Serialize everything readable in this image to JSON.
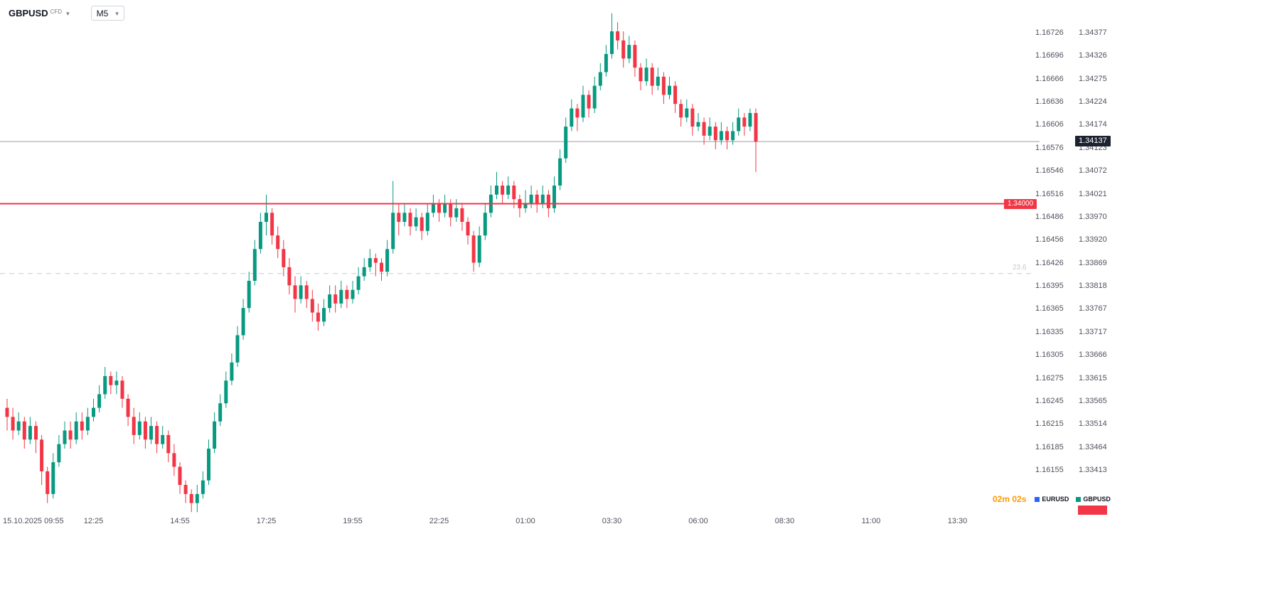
{
  "header": {
    "symbol": "GBPUSD",
    "market_type": "CFD",
    "interval": "M5"
  },
  "footer": {
    "countdown": "02m 02s",
    "legend": [
      {
        "label": "EURUSD",
        "color": "#2962ff"
      },
      {
        "label": "GBPUSD",
        "color": "#089981"
      }
    ]
  },
  "chart_data": {
    "type": "candlestick",
    "symbol": "GBPUSD",
    "interval": "M5",
    "ylim": [
      1.33413,
      1.34377
    ],
    "colors": {
      "up": "#089981",
      "down": "#f23645"
    },
    "levels": {
      "horizontal_line": {
        "price": 1.34,
        "label": "1.34000",
        "color": "#f23645"
      },
      "fib_level": {
        "price": 1.33846,
        "label": "23.6",
        "color": "#c9cbcf"
      },
      "current_price": {
        "price": 1.34137,
        "label": "1.34137",
        "color": "#1c2230"
      }
    },
    "price_axis": {
      "eurusd_scale": [
        "1.16726",
        "1.16696",
        "1.16666",
        "1.16636",
        "1.16606",
        "1.16576",
        "1.16546",
        "1.16516",
        "1.16486",
        "1.16456",
        "1.16426",
        "1.16395",
        "1.16365",
        "1.16335",
        "1.16305",
        "1.16275",
        "1.16245",
        "1.16215",
        "1.16185",
        "1.16155"
      ],
      "gbpusd_scale": [
        "1.34377",
        "1.34326",
        "1.34275",
        "1.34224",
        "1.34174",
        "1.34123",
        "1.34072",
        "1.34021",
        "1.33970",
        "1.33920",
        "1.33869",
        "1.33818",
        "1.33767",
        "1.33717",
        "1.33666",
        "1.33615",
        "1.33565",
        "1.33514",
        "1.33464",
        "1.33413"
      ]
    },
    "time_labels": [
      {
        "idx": 0,
        "label": "15.10.2025 09:55"
      },
      {
        "idx": 15,
        "label": "12:25"
      },
      {
        "idx": 30,
        "label": "14:55"
      },
      {
        "idx": 45,
        "label": "17:25"
      },
      {
        "idx": 60,
        "label": "19:55"
      },
      {
        "idx": 75,
        "label": "22:25"
      },
      {
        "idx": 90,
        "label": "01:00"
      },
      {
        "idx": 105,
        "label": "03:30"
      },
      {
        "idx": 120,
        "label": "06:00"
      },
      {
        "idx": 135,
        "label": "08:30"
      },
      {
        "idx": 150,
        "label": "11:00"
      },
      {
        "idx": 165,
        "label": "13:30"
      }
    ],
    "candles": [
      [
        1.3355,
        1.3357,
        1.335,
        1.3353
      ],
      [
        1.3353,
        1.3355,
        1.3348,
        1.335
      ],
      [
        1.335,
        1.3354,
        1.3349,
        1.3352
      ],
      [
        1.3352,
        1.3353,
        1.3346,
        1.3348
      ],
      [
        1.3348,
        1.3353,
        1.3347,
        1.3351
      ],
      [
        1.3351,
        1.3352,
        1.3345,
        1.3348
      ],
      [
        1.3348,
        1.3349,
        1.3338,
        1.3341
      ],
      [
        1.3341,
        1.3342,
        1.3334,
        1.3336
      ],
      [
        1.3336,
        1.3345,
        1.3335,
        1.3343
      ],
      [
        1.3343,
        1.3349,
        1.3342,
        1.3347
      ],
      [
        1.3347,
        1.3352,
        1.3346,
        1.335
      ],
      [
        1.335,
        1.3352,
        1.3346,
        1.3348
      ],
      [
        1.3348,
        1.3354,
        1.3347,
        1.3352
      ],
      [
        1.3352,
        1.3354,
        1.3348,
        1.335
      ],
      [
        1.335,
        1.3355,
        1.3349,
        1.3353
      ],
      [
        1.3353,
        1.3357,
        1.3352,
        1.3355
      ],
      [
        1.3355,
        1.336,
        1.3354,
        1.3358
      ],
      [
        1.3358,
        1.3364,
        1.3357,
        1.3362
      ],
      [
        1.3362,
        1.3363,
        1.3358,
        1.336
      ],
      [
        1.336,
        1.3363,
        1.3358,
        1.3361
      ],
      [
        1.3361,
        1.3362,
        1.3355,
        1.3357
      ],
      [
        1.3357,
        1.3358,
        1.3351,
        1.3353
      ],
      [
        1.3353,
        1.3355,
        1.3347,
        1.3349
      ],
      [
        1.3349,
        1.3354,
        1.3348,
        1.3352
      ],
      [
        1.3352,
        1.3353,
        1.3346,
        1.3348
      ],
      [
        1.3348,
        1.3353,
        1.3347,
        1.3351
      ],
      [
        1.3351,
        1.3352,
        1.3345,
        1.3347
      ],
      [
        1.3347,
        1.3351,
        1.3346,
        1.3349
      ],
      [
        1.3349,
        1.335,
        1.3343,
        1.3345
      ],
      [
        1.3345,
        1.3347,
        1.334,
        1.3342
      ],
      [
        1.3342,
        1.3343,
        1.3336,
        1.3338
      ],
      [
        1.3338,
        1.3339,
        1.3334,
        1.3336
      ],
      [
        1.3336,
        1.3337,
        1.3332,
        1.3334
      ],
      [
        1.3334,
        1.3338,
        1.3332,
        1.3336
      ],
      [
        1.3336,
        1.3341,
        1.3335,
        1.3339
      ],
      [
        1.3339,
        1.3348,
        1.3338,
        1.3346
      ],
      [
        1.3346,
        1.3354,
        1.3345,
        1.3352
      ],
      [
        1.3352,
        1.3358,
        1.3351,
        1.3356
      ],
      [
        1.3356,
        1.3363,
        1.3355,
        1.3361
      ],
      [
        1.3361,
        1.3367,
        1.336,
        1.3365
      ],
      [
        1.3365,
        1.3373,
        1.3364,
        1.3371
      ],
      [
        1.3371,
        1.3379,
        1.337,
        1.3377
      ],
      [
        1.3377,
        1.3385,
        1.3376,
        1.3383
      ],
      [
        1.3383,
        1.3392,
        1.3382,
        1.339
      ],
      [
        1.339,
        1.3398,
        1.3389,
        1.3396
      ],
      [
        1.3396,
        1.3402,
        1.3393,
        1.3398
      ],
      [
        1.3398,
        1.3399,
        1.3391,
        1.3393
      ],
      [
        1.3393,
        1.3395,
        1.3388,
        1.339
      ],
      [
        1.339,
        1.3392,
        1.3384,
        1.3386
      ],
      [
        1.3386,
        1.3388,
        1.338,
        1.3382
      ],
      [
        1.3382,
        1.3384,
        1.3376,
        1.3379
      ],
      [
        1.3379,
        1.3384,
        1.3378,
        1.3382
      ],
      [
        1.3382,
        1.3383,
        1.3377,
        1.3379
      ],
      [
        1.3379,
        1.3381,
        1.3374,
        1.3376
      ],
      [
        1.3376,
        1.3378,
        1.3372,
        1.3374
      ],
      [
        1.3374,
        1.3379,
        1.3373,
        1.3377
      ],
      [
        1.3377,
        1.3382,
        1.3376,
        1.338
      ],
      [
        1.338,
        1.3382,
        1.3376,
        1.3378
      ],
      [
        1.3378,
        1.3383,
        1.3377,
        1.3381
      ],
      [
        1.3381,
        1.3382,
        1.3377,
        1.3379
      ],
      [
        1.3379,
        1.3383,
        1.3378,
        1.3381
      ],
      [
        1.3381,
        1.3386,
        1.338,
        1.3384
      ],
      [
        1.3384,
        1.3388,
        1.3383,
        1.3386
      ],
      [
        1.3386,
        1.339,
        1.3385,
        1.3388
      ],
      [
        1.3388,
        1.3389,
        1.3384,
        1.3387
      ],
      [
        1.3387,
        1.3388,
        1.3383,
        1.3385
      ],
      [
        1.3385,
        1.3392,
        1.3384,
        1.339
      ],
      [
        1.339,
        1.3405,
        1.3389,
        1.3398
      ],
      [
        1.3398,
        1.34,
        1.3393,
        1.3396
      ],
      [
        1.3396,
        1.34,
        1.3395,
        1.3398
      ],
      [
        1.3398,
        1.3399,
        1.3393,
        1.3395
      ],
      [
        1.3395,
        1.3399,
        1.3394,
        1.3397
      ],
      [
        1.3397,
        1.3398,
        1.3392,
        1.3394
      ],
      [
        1.3394,
        1.34,
        1.3393,
        1.3398
      ],
      [
        1.3398,
        1.3402,
        1.3397,
        1.34
      ],
      [
        1.34,
        1.3401,
        1.3396,
        1.3398
      ],
      [
        1.3398,
        1.3402,
        1.3397,
        1.34
      ],
      [
        1.34,
        1.3401,
        1.3395,
        1.3397
      ],
      [
        1.3397,
        1.3401,
        1.3396,
        1.3399
      ],
      [
        1.3399,
        1.34,
        1.3394,
        1.3396
      ],
      [
        1.3396,
        1.3397,
        1.3391,
        1.3393
      ],
      [
        1.3393,
        1.3394,
        1.3385,
        1.3387
      ],
      [
        1.3387,
        1.3395,
        1.3386,
        1.3393
      ],
      [
        1.3393,
        1.34,
        1.3392,
        1.3398
      ],
      [
        1.3398,
        1.3404,
        1.3397,
        1.3402
      ],
      [
        1.3402,
        1.3407,
        1.3401,
        1.3404
      ],
      [
        1.3404,
        1.3405,
        1.34,
        1.3402
      ],
      [
        1.3402,
        1.3406,
        1.3401,
        1.3404
      ],
      [
        1.3404,
        1.3405,
        1.3399,
        1.3401
      ],
      [
        1.3401,
        1.3402,
        1.3397,
        1.3399
      ],
      [
        1.3399,
        1.3403,
        1.3398,
        1.34
      ],
      [
        1.34,
        1.3404,
        1.3399,
        1.3402
      ],
      [
        1.3402,
        1.3403,
        1.3398,
        1.34
      ],
      [
        1.34,
        1.3404,
        1.3399,
        1.3402
      ],
      [
        1.3402,
        1.3403,
        1.3397,
        1.3399
      ],
      [
        1.3399,
        1.3406,
        1.3398,
        1.3404
      ],
      [
        1.3404,
        1.3412,
        1.3403,
        1.341
      ],
      [
        1.341,
        1.3419,
        1.3409,
        1.3417
      ],
      [
        1.3417,
        1.3423,
        1.3416,
        1.3421
      ],
      [
        1.3421,
        1.3422,
        1.3416,
        1.3419
      ],
      [
        1.3419,
        1.3426,
        1.3418,
        1.3424
      ],
      [
        1.3424,
        1.3425,
        1.3419,
        1.3421
      ],
      [
        1.3421,
        1.3428,
        1.342,
        1.3426
      ],
      [
        1.3426,
        1.3431,
        1.3425,
        1.3429
      ],
      [
        1.3429,
        1.3435,
        1.3428,
        1.3433
      ],
      [
        1.3433,
        1.3442,
        1.3432,
        1.3438
      ],
      [
        1.3438,
        1.344,
        1.3434,
        1.3436
      ],
      [
        1.3436,
        1.3438,
        1.343,
        1.3432
      ],
      [
        1.3432,
        1.3437,
        1.3431,
        1.3435
      ],
      [
        1.3435,
        1.3436,
        1.3428,
        1.343
      ],
      [
        1.343,
        1.3431,
        1.3425,
        1.3427
      ],
      [
        1.3427,
        1.3432,
        1.3426,
        1.343
      ],
      [
        1.343,
        1.3431,
        1.3424,
        1.3426
      ],
      [
        1.3426,
        1.343,
        1.3425,
        1.3428
      ],
      [
        1.3428,
        1.3429,
        1.3422,
        1.3424
      ],
      [
        1.3424,
        1.3428,
        1.3423,
        1.3426
      ],
      [
        1.3426,
        1.3427,
        1.342,
        1.3422
      ],
      [
        1.3422,
        1.3423,
        1.3417,
        1.3419
      ],
      [
        1.3419,
        1.3423,
        1.3418,
        1.3421
      ],
      [
        1.3421,
        1.3422,
        1.3415,
        1.3417
      ],
      [
        1.3417,
        1.342,
        1.3416,
        1.3418
      ],
      [
        1.3418,
        1.3419,
        1.3413,
        1.3415
      ],
      [
        1.3415,
        1.3419,
        1.3414,
        1.3417
      ],
      [
        1.3417,
        1.3418,
        1.3412,
        1.3414
      ],
      [
        1.3414,
        1.3418,
        1.3413,
        1.3416
      ],
      [
        1.3416,
        1.3417,
        1.3412,
        1.3414
      ],
      [
        1.3414,
        1.3418,
        1.3413,
        1.3416
      ],
      [
        1.3416,
        1.3421,
        1.3415,
        1.3419
      ],
      [
        1.3419,
        1.342,
        1.3415,
        1.3417
      ],
      [
        1.3417,
        1.3421,
        1.3416,
        1.342
      ],
      [
        1.342,
        1.3421,
        1.3407,
        1.34137
      ]
    ]
  }
}
